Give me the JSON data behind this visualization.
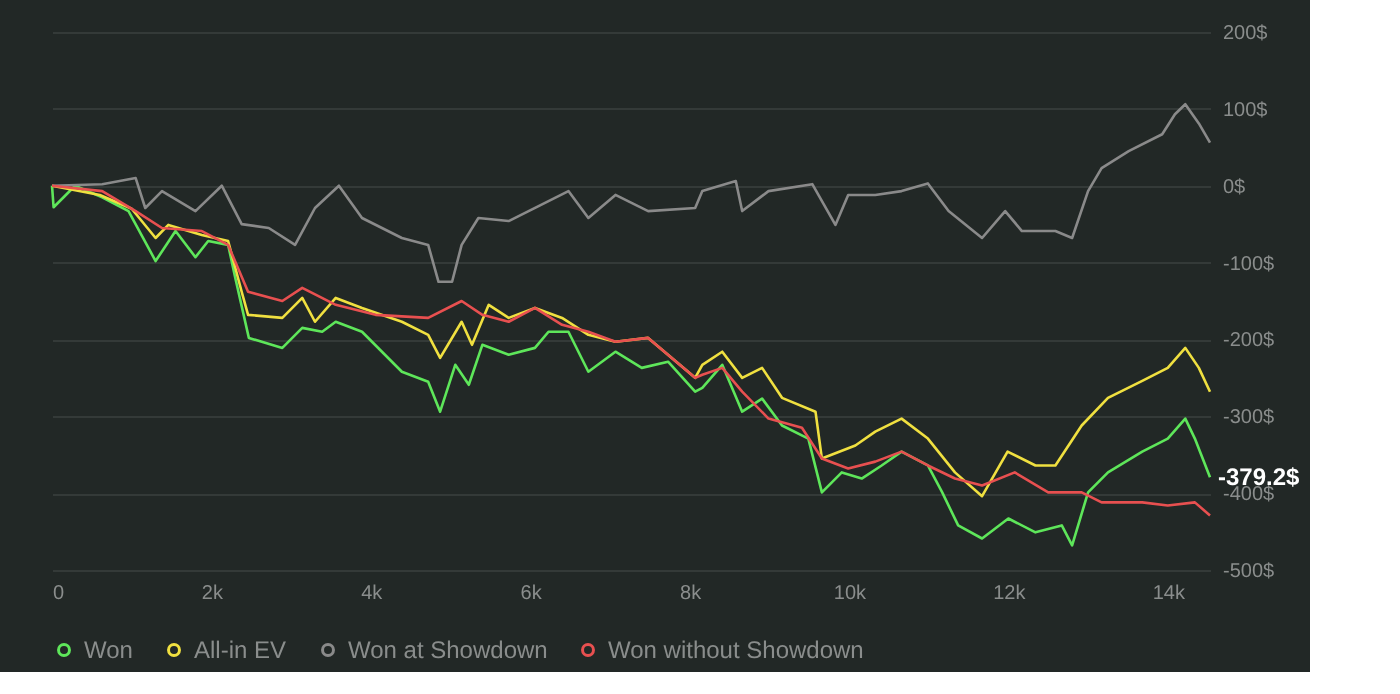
{
  "chart_data": {
    "type": "line",
    "xlim": [
      0,
      14530
    ],
    "ylim": [
      -500,
      200
    ],
    "xticks": [
      0,
      {
        "value": 2000,
        "label": "2k"
      },
      {
        "value": 4000,
        "label": "4k"
      },
      {
        "value": 6000,
        "label": "6k"
      },
      {
        "value": 8000,
        "label": "8k"
      },
      {
        "value": 10000,
        "label": "10k"
      },
      {
        "value": 12000,
        "label": "12k"
      },
      {
        "value": 14000,
        "label": "14k"
      }
    ],
    "yticks": [
      {
        "value": 200,
        "label": "200$"
      },
      {
        "value": 100,
        "label": "100$"
      },
      {
        "value": 0,
        "label": "0$"
      },
      {
        "value": -100,
        "label": "-100$"
      },
      {
        "value": -200,
        "label": "-200$"
      },
      {
        "value": -300,
        "label": "-300$"
      },
      {
        "value": -400,
        "label": "-400$"
      },
      {
        "value": -500,
        "label": "-500$"
      }
    ],
    "grid": "y",
    "legend": "bottom",
    "marker": "none",
    "line_style": "solid",
    "annotations": [
      {
        "text": "-379.2$",
        "x": 14530,
        "y": -379.2
      }
    ],
    "series": [
      {
        "name": "Won",
        "color": "#5ee65a",
        "x": [
          0,
          20,
          290,
          630,
          960,
          1300,
          1550,
          1800,
          1960,
          2210,
          2300,
          2470,
          2890,
          3140,
          3390,
          3560,
          3890,
          4390,
          4720,
          4870,
          5060,
          5230,
          5400,
          5730,
          6060,
          6230,
          6480,
          6730,
          7070,
          7400,
          7730,
          8070,
          8160,
          8410,
          8660,
          8910,
          9160,
          9490,
          9660,
          9910,
          10160,
          10410,
          10660,
          10990,
          11170,
          11370,
          11670,
          12000,
          12340,
          12670,
          12800,
          13000,
          13250,
          13680,
          14000,
          14220,
          14340,
          14530
        ],
        "values": [
          0,
          -28,
          0,
          -15,
          -33,
          -98,
          -59,
          -93,
          -72,
          -77,
          -120,
          -198,
          -211,
          -185,
          -190,
          -177,
          -190,
          -242,
          -255,
          -294,
          -233,
          -259,
          -207,
          -220,
          -211,
          -190,
          -190,
          -242,
          -216,
          -237,
          -229,
          -268,
          -263,
          -233,
          -294,
          -277,
          -312,
          -329,
          -399,
          -373,
          -381,
          -364,
          -346,
          -364,
          -399,
          -442,
          -459,
          -433,
          -451,
          -442,
          -468,
          -399,
          -373,
          -346,
          -329,
          -303,
          -329,
          -379.2
        ]
      },
      {
        "name": "All-in EV",
        "color": "#f0e040",
        "x": [
          0,
          600,
          1000,
          1300,
          1460,
          1880,
          2210,
          2380,
          2460,
          2890,
          3140,
          3300,
          3560,
          3890,
          4390,
          4720,
          4870,
          5140,
          5270,
          5480,
          5730,
          6060,
          6400,
          6730,
          7070,
          7480,
          8070,
          8160,
          8410,
          8660,
          8910,
          9160,
          9580,
          9660,
          10080,
          10330,
          10660,
          10990,
          11330,
          11670,
          11990,
          12340,
          12590,
          12920,
          13250,
          13680,
          14000,
          14220,
          14390,
          14530
        ],
        "values": [
          0,
          -12,
          -30,
          -68,
          -51,
          -64,
          -72,
          -138,
          -168,
          -172,
          -146,
          -177,
          -146,
          -159,
          -177,
          -194,
          -224,
          -177,
          -207,
          -155,
          -172,
          -159,
          -172,
          -194,
          -203,
          -198,
          -250,
          -233,
          -216,
          -250,
          -237,
          -276,
          -294,
          -355,
          -338,
          -320,
          -303,
          -329,
          -373,
          -404,
          -346,
          -364,
          -364,
          -312,
          -276,
          -254,
          -237,
          -211,
          -237,
          -268
        ]
      },
      {
        "name": "Won at Showdown",
        "color": "#8a8a8a",
        "x": [
          0,
          630,
          1050,
          1170,
          1380,
          1800,
          2130,
          2380,
          2720,
          3050,
          3300,
          3600,
          3890,
          4390,
          4720,
          4850,
          5020,
          5140,
          5350,
          5730,
          6230,
          6480,
          6730,
          7070,
          7480,
          8070,
          8160,
          8580,
          8660,
          8990,
          9540,
          9830,
          9990,
          10330,
          10660,
          10990,
          11250,
          11670,
          11960,
          12170,
          12590,
          12800,
          13000,
          13170,
          13510,
          13930,
          14090,
          14220,
          14390,
          14530
        ],
        "values": [
          0,
          2,
          10,
          -29,
          -7,
          -33,
          0,
          -50,
          -55,
          -77,
          -29,
          0,
          -42,
          -68,
          -77,
          -125,
          -125,
          -77,
          -42,
          -46,
          -20,
          -7,
          -42,
          -12,
          -33,
          -29,
          -7,
          6,
          -33,
          -7,
          2,
          -51,
          -12,
          -12,
          -7,
          3,
          -33,
          -68,
          -33,
          -59,
          -59,
          -68,
          -7,
          23,
          45,
          67,
          93,
          106,
          81,
          56
        ]
      },
      {
        "name": "Won without Showdown",
        "color": "#e85050",
        "x": [
          0,
          630,
          1050,
          1380,
          1880,
          2210,
          2460,
          2890,
          3140,
          3560,
          4060,
          4720,
          5140,
          5400,
          5730,
          6060,
          6400,
          6730,
          7070,
          7480,
          8070,
          8160,
          8410,
          8660,
          8990,
          9410,
          9660,
          9990,
          10330,
          10660,
          10990,
          11330,
          11670,
          12080,
          12500,
          12920,
          13170,
          13680,
          14000,
          14340,
          14530
        ],
        "values": [
          0,
          -7,
          -33,
          -55,
          -59,
          -77,
          -138,
          -150,
          -133,
          -155,
          -168,
          -172,
          -150,
          -168,
          -177,
          -159,
          -181,
          -190,
          -203,
          -198,
          -250,
          -246,
          -237,
          -268,
          -303,
          -315,
          -355,
          -368,
          -359,
          -346,
          -364,
          -381,
          -390,
          -373,
          -399,
          -399,
          -412,
          -412,
          -416,
          -412,
          -429
        ]
      }
    ]
  }
}
